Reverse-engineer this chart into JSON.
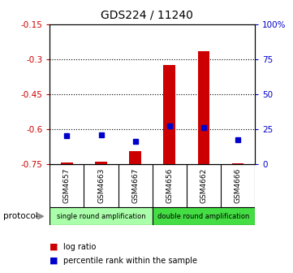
{
  "title": "GDS224 / 11240",
  "samples": [
    "GSM4657",
    "GSM4663",
    "GSM4667",
    "GSM4656",
    "GSM4662",
    "GSM4666"
  ],
  "log_ratio": [
    -0.745,
    -0.74,
    -0.695,
    -0.325,
    -0.265,
    -0.748
  ],
  "percentile_rank": [
    20,
    21,
    16,
    27,
    26,
    17
  ],
  "ylim_left": [
    -0.75,
    -0.15
  ],
  "ylim_right": [
    0,
    100
  ],
  "yticks_left": [
    -0.75,
    -0.6,
    -0.45,
    -0.3,
    -0.15
  ],
  "yticks_right": [
    0,
    25,
    50,
    75,
    100
  ],
  "ytick_labels_right": [
    "0",
    "25",
    "50",
    "75",
    "100%"
  ],
  "bar_color": "#cc0000",
  "dot_color": "#0000cc",
  "group1_label": "single round amplification",
  "group2_label": "double round amplification",
  "group1_color": "#aaffaa",
  "group2_color": "#44dd44",
  "protocol_label": "protocol",
  "legend_items": [
    {
      "label": "log ratio",
      "color": "#cc0000"
    },
    {
      "label": "percentile rank within the sample",
      "color": "#0000cc"
    }
  ],
  "background_color": "#ffffff",
  "sample_box_color": "#cccccc",
  "bar_width": 0.35
}
